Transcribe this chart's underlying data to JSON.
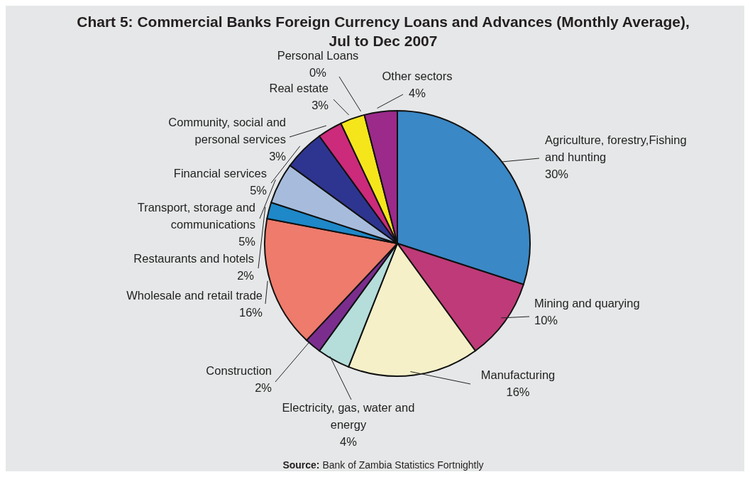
{
  "chart_data": {
    "type": "pie",
    "title": "Chart 5: Commercial Banks Foreign Currency Loans and Advances (Monthly Average), Jul to Dec 2007",
    "categories": [
      "Agriculture, forestry,Fishing and hunting",
      "Mining  and quarying",
      "Manufacturing",
      "Electricity, gas, water and energy",
      "Construction",
      "Wholesale and retail trade",
      "Restaurants and hotels",
      "Transport, storage and communications",
      "Financial services",
      "Community, social and personal services",
      "Real estate",
      "Personal Loans",
      "Other sectors"
    ],
    "values": [
      30,
      10,
      16,
      4,
      2,
      16,
      2,
      5,
      5,
      3,
      3,
      0,
      4
    ],
    "colors": [
      "#3a88c6",
      "#bf3a78",
      "#f5f0c8",
      "#b5ddd9",
      "#7b2d8e",
      "#ee7b6c",
      "#1e88c8",
      "#a7bcdc",
      "#2e3590",
      "#cc2a7a",
      "#f5e61b",
      "#222222",
      "#9b2a8a"
    ],
    "value_labels": [
      "30%",
      "10%",
      "16%",
      "4%",
      "2%",
      "16%",
      "2%",
      "5%",
      "5%",
      "3%",
      "3%",
      "0%",
      "4%"
    ],
    "annotations": [
      "Source: Bank of Zambia Statistics Fortnightly"
    ]
  }
}
